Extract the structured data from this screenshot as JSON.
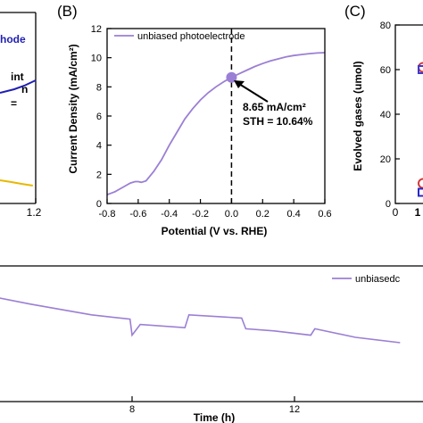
{
  "chart_data": [
    {
      "panel": "A",
      "type": "line",
      "partial": true,
      "xlabel": "",
      "ylabel": "",
      "x_ticks_visible": [
        "1.2"
      ],
      "fragments": {
        "legend_text": "hode",
        "annotation_line1": "int",
        "annotation_line2": "n",
        "annotation_line3": "="
      },
      "series": [
        {
          "name": "",
          "color": "#1f1fb4",
          "x": [
            0.95,
            1.05,
            1.12,
            1.2
          ],
          "values": [
            0.62,
            0.64,
            0.66,
            0.69
          ]
        },
        {
          "name": "",
          "color": "#e8b800",
          "x": [
            0.95,
            1.03,
            1.1,
            1.18
          ],
          "values": [
            0.13,
            0.12,
            0.11,
            0.1
          ]
        }
      ]
    },
    {
      "panel": "B",
      "type": "line",
      "panel_label": "(B)",
      "xlabel": "Potential (V vs. RHE)",
      "ylabel": "Current Density (mA/cm²)",
      "xlim": [
        -0.8,
        0.6
      ],
      "ylim": [
        0,
        12
      ],
      "x_ticks": [
        "-0.8",
        "-0.6",
        "-0.4",
        "-0.2",
        "0.0",
        "0.2",
        "0.4",
        "0.6"
      ],
      "x_tick_values": [
        -0.8,
        -0.6,
        -0.4,
        -0.2,
        0.0,
        0.2,
        0.4,
        0.6
      ],
      "y_ticks": [
        "0",
        "2",
        "4",
        "6",
        "8",
        "10",
        "12"
      ],
      "y_tick_values": [
        0,
        2,
        4,
        6,
        8,
        10,
        12
      ],
      "legend": "unbiased photoelectrode",
      "legend_position": "top-left",
      "series_color": "#9b7fd4",
      "series": [
        {
          "name": "unbiased photoelectrode",
          "x": [
            -0.8,
            -0.75,
            -0.7,
            -0.65,
            -0.62,
            -0.6,
            -0.58,
            -0.55,
            -0.5,
            -0.45,
            -0.4,
            -0.35,
            -0.3,
            -0.25,
            -0.2,
            -0.15,
            -0.1,
            -0.05,
            0.0,
            0.05,
            0.1,
            0.15,
            0.2,
            0.25,
            0.3,
            0.35,
            0.4,
            0.45,
            0.5,
            0.55,
            0.6
          ],
          "values": [
            0.6,
            0.8,
            1.1,
            1.4,
            1.5,
            1.5,
            1.45,
            1.55,
            2.2,
            3.0,
            4.0,
            4.9,
            5.8,
            6.5,
            7.1,
            7.6,
            8.0,
            8.35,
            8.65,
            8.9,
            9.15,
            9.4,
            9.6,
            9.78,
            9.92,
            10.05,
            10.15,
            10.22,
            10.28,
            10.32,
            10.35
          ]
        }
      ],
      "marker": {
        "x": 0.0,
        "y": 8.65,
        "color": "#9b7fd4"
      },
      "vline_x": 0.0,
      "annotation": {
        "line1": "8.65 mA/cm²",
        "line2": "STH = 10.64%"
      }
    },
    {
      "panel": "C",
      "type": "scatter",
      "partial": true,
      "panel_label": "(C)",
      "xlabel": "",
      "ylabel": "Evolved gases (umol)",
      "ylim": [
        0,
        80
      ],
      "y_ticks": [
        "0",
        "20",
        "40",
        "60",
        "80"
      ],
      "y_tick_values": [
        0,
        20,
        40,
        60,
        80
      ],
      "x_ticks_visible": [
        "0",
        "1"
      ],
      "points": [
        {
          "y": 61,
          "shape": "circle",
          "color": "#d23a3a"
        },
        {
          "y": 60,
          "shape": "square",
          "color": "#3a3ad2"
        },
        {
          "y": 9,
          "shape": "circle",
          "color": "#d23a3a"
        },
        {
          "y": 5,
          "shape": "square",
          "color": "#2828c8"
        }
      ]
    },
    {
      "panel": "D",
      "type": "line",
      "partial": true,
      "xlabel": "Time (h)",
      "ylabel": "",
      "x_ticks": [
        "8",
        "12"
      ],
      "x_tick_values": [
        8,
        12
      ],
      "legend": "unbiasedc",
      "series_color": "#9b7fd4",
      "series": [
        {
          "name": "unbiasedc",
          "x": [
            4.3,
            5.5,
            7.0,
            7.95,
            8.0,
            8.2,
            9.3,
            9.4,
            10.7,
            10.8,
            11.5,
            12.4,
            12.5,
            13.5,
            14.6
          ],
          "values": [
            1.0,
            0.91,
            0.81,
            0.77,
            0.62,
            0.72,
            0.69,
            0.81,
            0.78,
            0.68,
            0.66,
            0.62,
            0.68,
            0.6,
            0.55
          ]
        }
      ]
    }
  ]
}
